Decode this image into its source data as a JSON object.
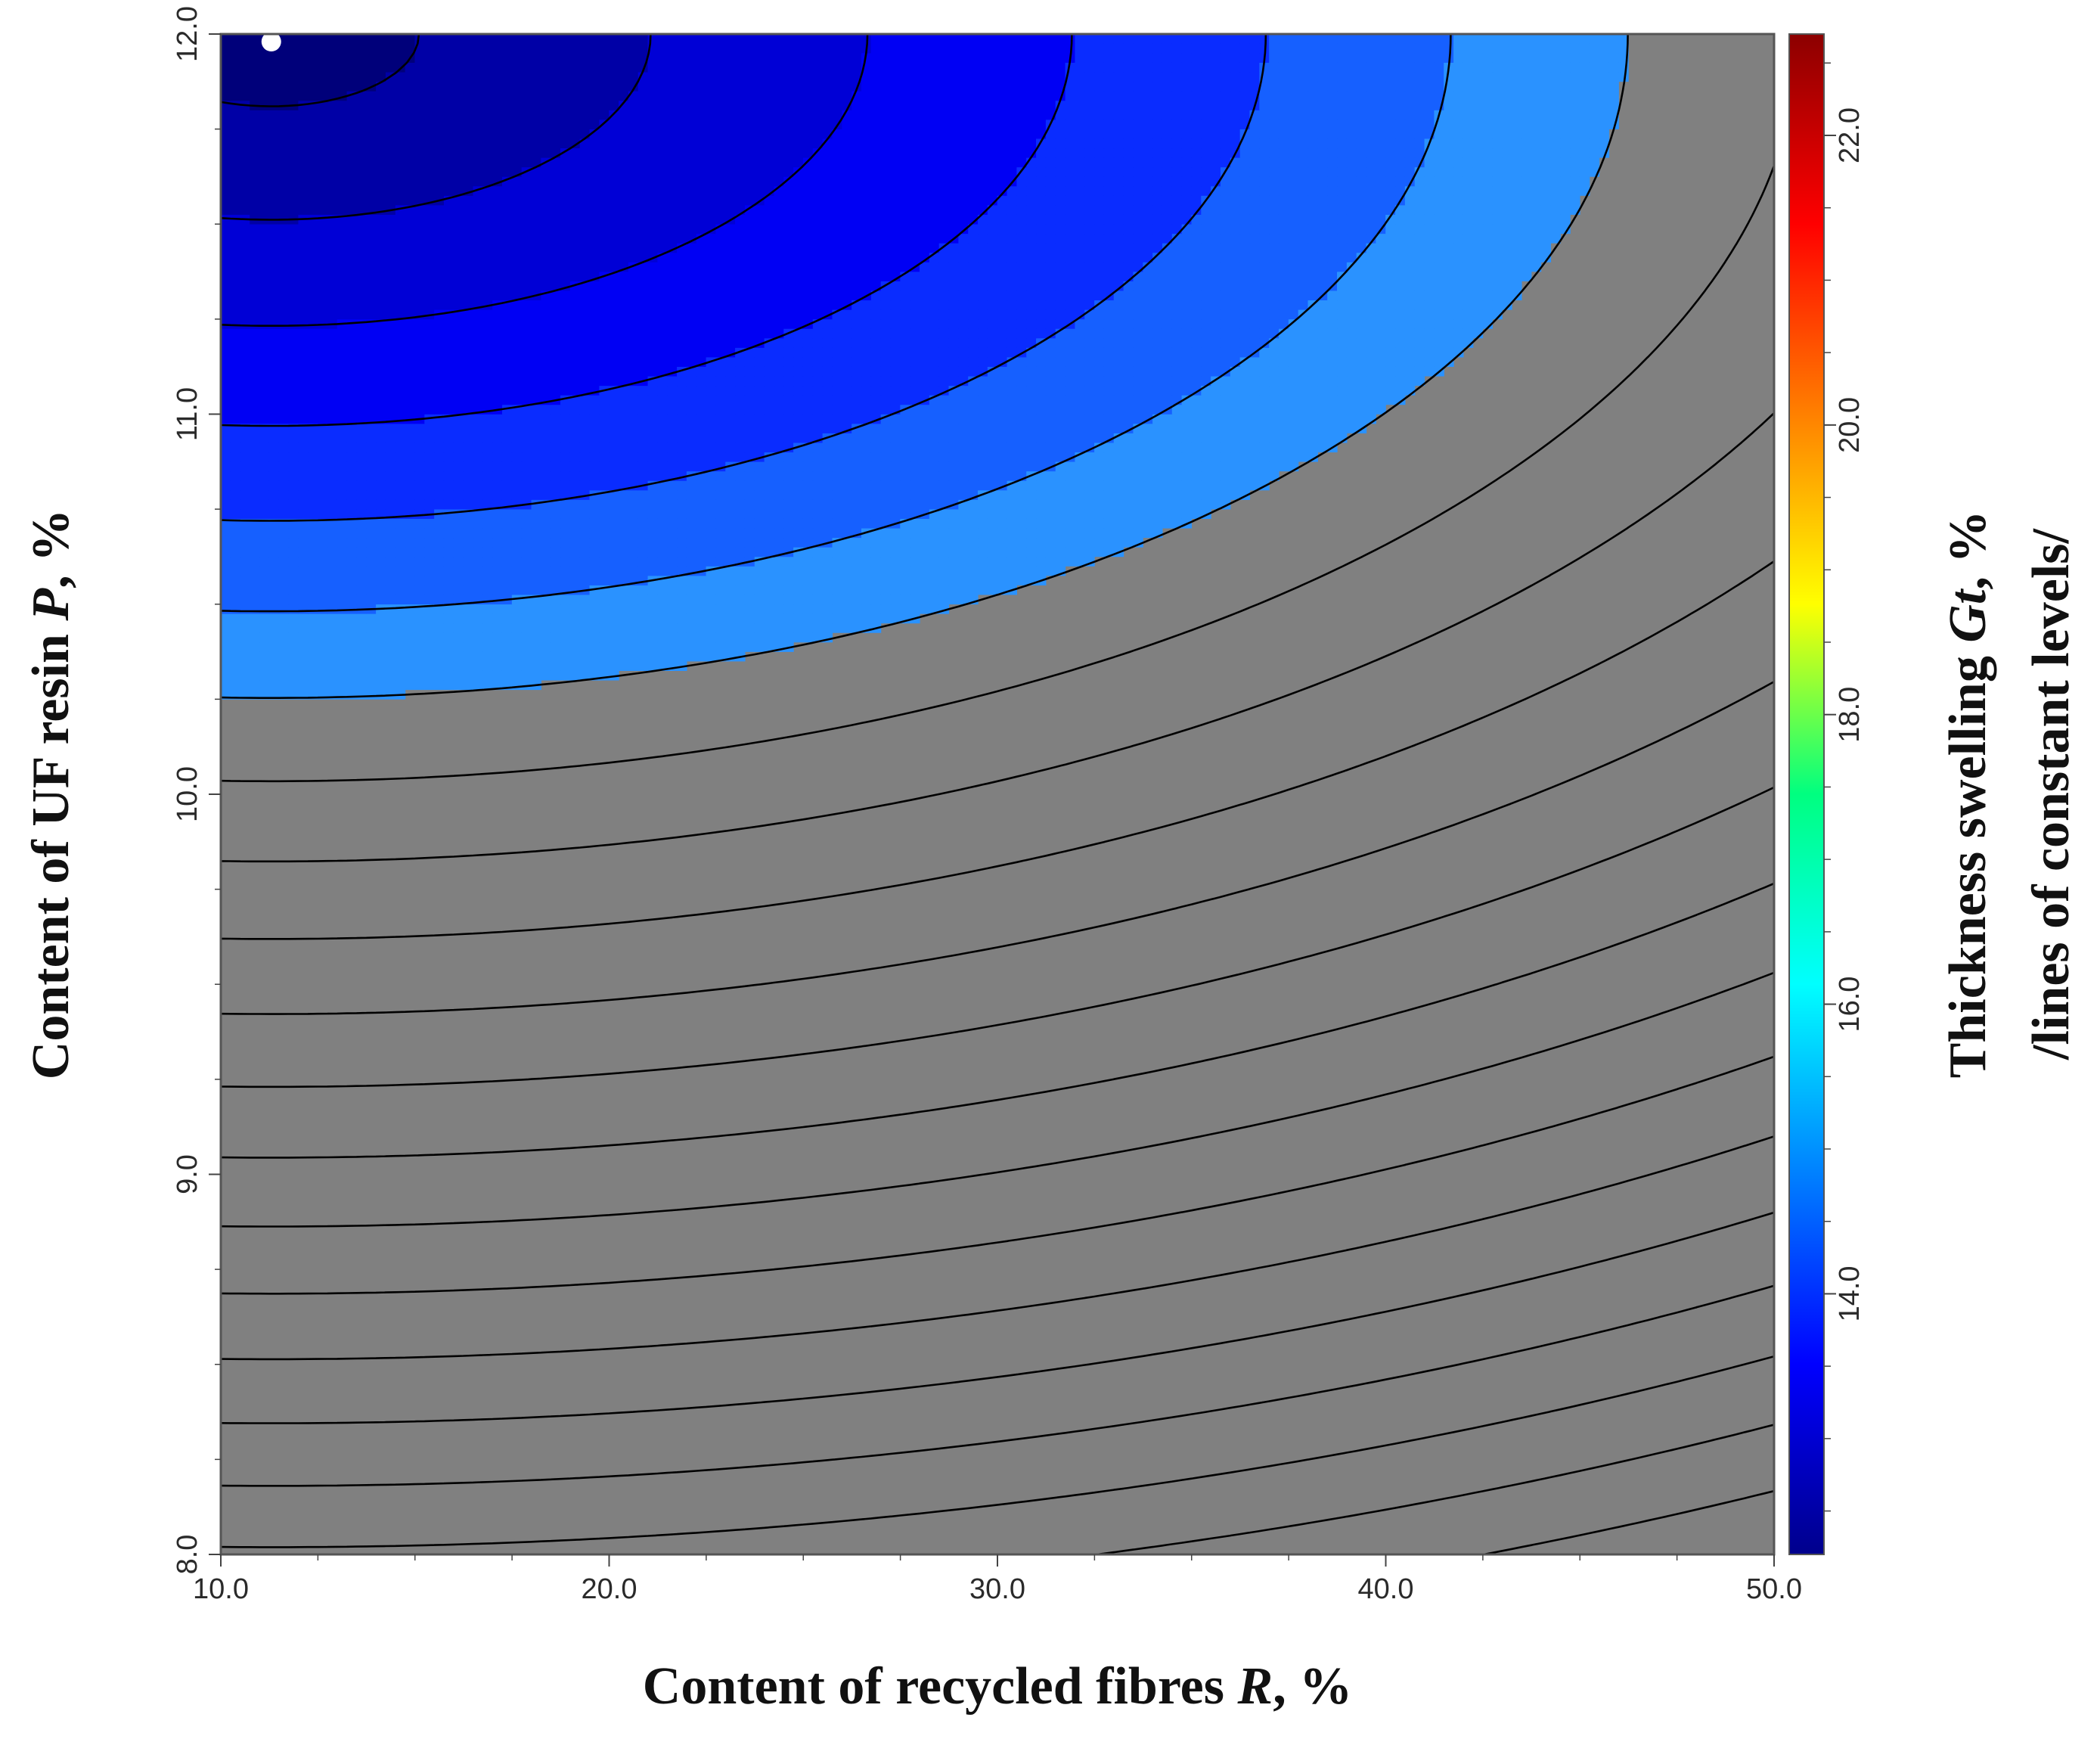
{
  "chart_data": {
    "type": "contour",
    "x_axis": {
      "label_prefix": "Content of recycled fibres ",
      "label_var": "R",
      "label_suffix": ", %",
      "range": [
        10.0,
        50.0
      ],
      "ticks": [
        "10.0",
        "20.0",
        "30.0",
        "40.0",
        "50.0"
      ]
    },
    "y_axis": {
      "label_prefix": "Content of UF resin ",
      "label_var": "P",
      "label_suffix": ", %",
      "range": [
        8.0,
        12.0
      ],
      "ticks": [
        "8.0",
        "9.0",
        "10.0",
        "11.0",
        "12.0"
      ]
    },
    "colorbar": {
      "label_line1_prefix": "Thickness swelling ",
      "label_line1_var": "Gt",
      "label_line1_suffix": ", %",
      "label_line2": "/lines of constant levels/",
      "range": [
        12.2,
        22.7
      ],
      "ticks": [
        "14.0",
        "16.0",
        "18.0",
        "20.0",
        "22.0"
      ],
      "colors": [
        "#00008c",
        "#0000ff",
        "#0080ff",
        "#00ffff",
        "#00ff80",
        "#ffff00",
        "#ff8000",
        "#ff0000",
        "#8c0000"
      ]
    },
    "surface": {
      "min_value": 12.2,
      "min_point": [
        11.3,
        12.0
      ],
      "shown_levels": [
        12.5,
        13.0,
        13.5,
        14.0,
        14.5,
        15.0
      ],
      "level_colors": [
        "#00007a",
        "#0000a6",
        "#0000d6",
        "#0000f4",
        "#0a2cff",
        "#1660ff",
        "#2a92ff"
      ],
      "unshaded_fill": "#808080",
      "contour_levels": [
        12.5,
        13.0,
        13.5,
        14.0,
        14.5,
        15.0,
        15.5,
        16.0,
        16.5,
        17.0,
        17.5,
        18.0,
        18.5,
        19.0,
        19.5,
        20.0,
        20.5,
        21.0,
        21.5,
        22.0,
        22.5
      ],
      "contour_color": "#000000",
      "marker_color": "#ffffff"
    }
  }
}
